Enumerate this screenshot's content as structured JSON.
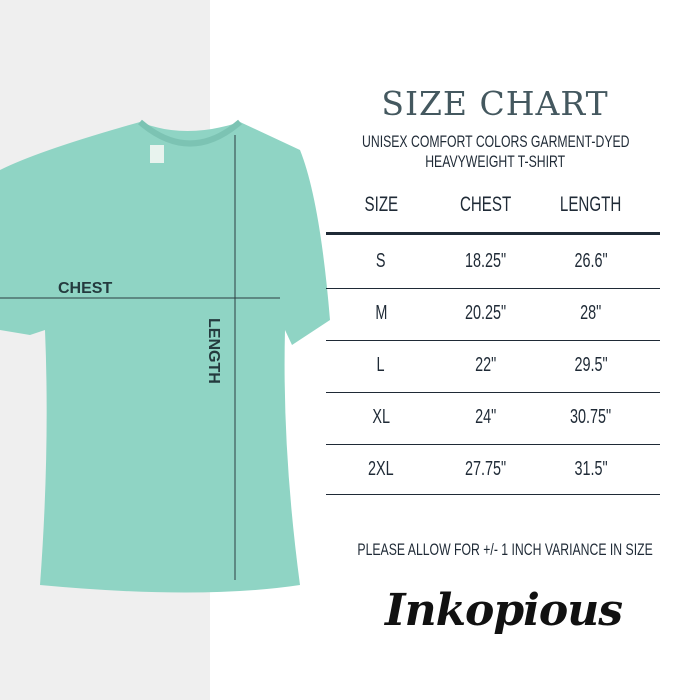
{
  "title": "SIZE CHART",
  "subtitle": [
    "UNISEX COMFORT COLORS GARMENT-DYED",
    "HEAVYWEIGHT T-SHIRT"
  ],
  "table": {
    "headers": [
      "SIZE",
      "CHEST",
      "LENGTH"
    ],
    "rows": [
      [
        "S",
        "18.25\"",
        "26.6\""
      ],
      [
        "M",
        "20.25\"",
        "28\""
      ],
      [
        "L",
        "22\"",
        "29.5\""
      ],
      [
        "XL",
        "24\"",
        "30.75\""
      ],
      [
        "2XL",
        "27.75\"",
        "31.5\""
      ]
    ]
  },
  "shirt_labels": {
    "chest": "CHEST",
    "length": "LENGTH"
  },
  "note": "PLEASE ALLOW FOR +/- 1 INCH VARIANCE IN SIZE",
  "logo": "Inkopious",
  "colors": {
    "shirt": "#8fd4c4",
    "title": "#44585f",
    "text": "#1f2a36",
    "panel": "#efefef"
  }
}
